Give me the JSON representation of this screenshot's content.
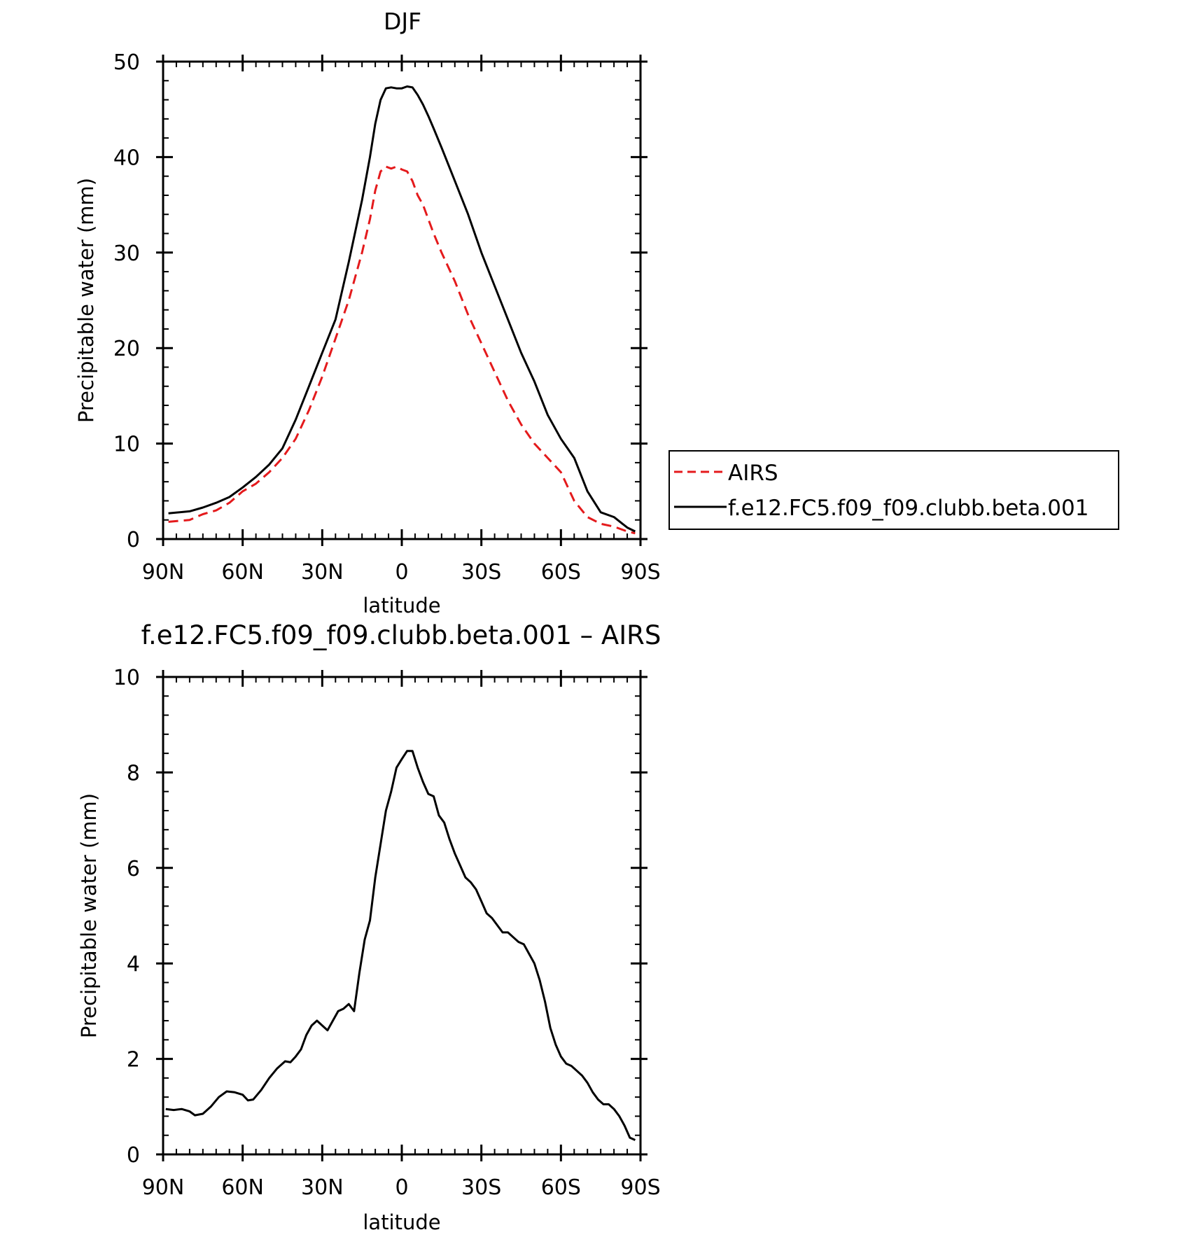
{
  "chart_data": [
    {
      "type": "line",
      "title": "DJF",
      "xlabel": "latitude",
      "ylabel": "Precipitable water (mm)",
      "xlim": [
        90,
        -90
      ],
      "ylim": [
        0,
        50
      ],
      "xticks": [
        90,
        60,
        30,
        0,
        -30,
        -60,
        -90
      ],
      "xtick_labels": [
        "90N",
        "60N",
        "30N",
        "0",
        "30S",
        "60S",
        "90S"
      ],
      "yticks": [
        0,
        10,
        20,
        30,
        40,
        50
      ],
      "ytick_labels": [
        "0",
        "10",
        "20",
        "30",
        "40",
        "50"
      ],
      "grid": false,
      "legend_position": "right",
      "x": [
        88,
        80,
        75,
        70,
        65,
        60,
        55,
        50,
        45,
        40,
        35,
        30,
        25,
        20,
        15,
        12,
        10,
        8,
        6,
        4,
        2,
        0,
        -2,
        -4,
        -6,
        -8,
        -10,
        -12,
        -15,
        -20,
        -25,
        -30,
        -35,
        -40,
        -45,
        -50,
        -55,
        -60,
        -65,
        -70,
        -75,
        -80,
        -85,
        -88
      ],
      "series": [
        {
          "name": "AIRS",
          "color": "#e41a1c",
          "dash": "dashed",
          "values": [
            1.8,
            2.0,
            2.6,
            3.0,
            3.8,
            5.0,
            5.8,
            7.0,
            8.5,
            10.5,
            13.5,
            17.0,
            21.0,
            25.0,
            30.0,
            33.5,
            36.5,
            38.5,
            39.0,
            38.8,
            39.0,
            38.7,
            38.5,
            37.5,
            36.0,
            35.0,
            33.5,
            32.0,
            30.0,
            27.0,
            23.5,
            20.5,
            17.5,
            14.5,
            12.0,
            10.0,
            8.5,
            7.0,
            4.0,
            2.3,
            1.6,
            1.3,
            0.8,
            0.6
          ]
        },
        {
          "name": "f.e12.FC5.f09_f09.clubb.beta.001",
          "color": "#000000",
          "dash": "solid",
          "values": [
            2.7,
            2.9,
            3.3,
            3.8,
            4.4,
            5.4,
            6.5,
            7.8,
            9.5,
            12.5,
            16.0,
            19.5,
            23.0,
            29.0,
            35.5,
            40.0,
            43.5,
            46.0,
            47.2,
            47.3,
            47.2,
            47.2,
            47.4,
            47.3,
            46.5,
            45.5,
            44.3,
            43.0,
            41.0,
            37.5,
            34.0,
            30.0,
            26.5,
            23.0,
            19.5,
            16.5,
            13.0,
            10.5,
            8.5,
            5.0,
            2.8,
            2.3,
            1.2,
            0.8
          ]
        }
      ]
    },
    {
      "type": "line",
      "title": "f.e12.FC5.f09_f09.clubb.beta.001 – AIRS",
      "xlabel": "latitude",
      "ylabel": "Precipitable water (mm)",
      "xlim": [
        90,
        -90
      ],
      "ylim": [
        0,
        10
      ],
      "xticks": [
        90,
        60,
        30,
        0,
        -30,
        -60,
        -90
      ],
      "xtick_labels": [
        "90N",
        "60N",
        "30N",
        "0",
        "30S",
        "60S",
        "90S"
      ],
      "yticks": [
        0,
        2,
        4,
        6,
        8,
        10
      ],
      "ytick_labels": [
        "0",
        "2",
        "4",
        "6",
        "8",
        "10"
      ],
      "grid": false,
      "x": [
        89,
        86,
        83,
        80,
        78,
        75,
        72,
        69,
        66,
        63,
        60,
        58,
        56,
        53,
        50,
        47,
        44,
        42,
        40,
        38,
        36,
        34,
        32,
        30,
        28,
        26,
        24,
        22,
        20,
        18,
        16,
        14,
        12,
        10,
        8,
        6,
        4,
        2,
        0,
        -2,
        -4,
        -6,
        -8,
        -10,
        -12,
        -14,
        -16,
        -18,
        -20,
        -22,
        -24,
        -26,
        -28,
        -30,
        -32,
        -34,
        -36,
        -38,
        -40,
        -42,
        -44,
        -46,
        -48,
        -50,
        -52,
        -54,
        -56,
        -58,
        -60,
        -62,
        -64,
        -66,
        -68,
        -70,
        -72,
        -74,
        -76,
        -78,
        -80,
        -82,
        -84,
        -86,
        -88
      ],
      "series": [
        {
          "name": "",
          "color": "#000000",
          "dash": "solid",
          "values": [
            0.95,
            0.93,
            0.95,
            0.9,
            0.82,
            0.85,
            1.0,
            1.2,
            1.32,
            1.3,
            1.25,
            1.13,
            1.15,
            1.35,
            1.6,
            1.8,
            1.95,
            1.93,
            2.05,
            2.2,
            2.5,
            2.7,
            2.8,
            2.7,
            2.6,
            2.8,
            3.0,
            3.05,
            3.15,
            3.0,
            3.8,
            4.5,
            4.9,
            5.8,
            6.5,
            7.2,
            7.6,
            8.1,
            8.28,
            8.45,
            8.45,
            8.1,
            7.8,
            7.55,
            7.5,
            7.1,
            6.95,
            6.6,
            6.3,
            6.05,
            5.8,
            5.7,
            5.55,
            5.3,
            5.05,
            4.95,
            4.8,
            4.65,
            4.65,
            4.55,
            4.45,
            4.4,
            4.2,
            4.0,
            3.65,
            3.2,
            2.65,
            2.3,
            2.05,
            1.9,
            1.85,
            1.75,
            1.65,
            1.5,
            1.3,
            1.15,
            1.05,
            1.05,
            0.95,
            0.8,
            0.6,
            0.35,
            0.3
          ]
        }
      ]
    }
  ]
}
